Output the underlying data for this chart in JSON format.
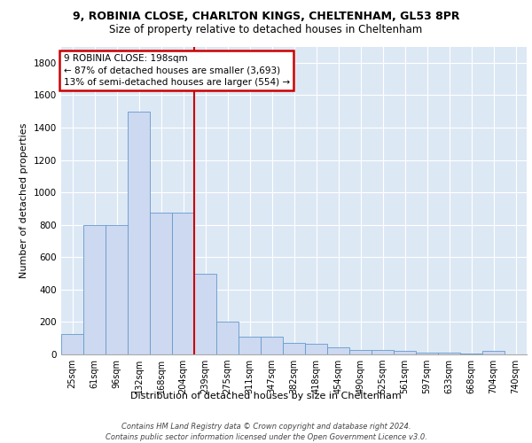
{
  "title_line1": "9, ROBINIA CLOSE, CHARLTON KINGS, CHELTENHAM, GL53 8PR",
  "title_line2": "Size of property relative to detached houses in Cheltenham",
  "xlabel": "Distribution of detached houses by size in Cheltenham",
  "ylabel": "Number of detached properties",
  "categories": [
    "25sqm",
    "61sqm",
    "96sqm",
    "132sqm",
    "168sqm",
    "204sqm",
    "239sqm",
    "275sqm",
    "311sqm",
    "347sqm",
    "382sqm",
    "418sqm",
    "454sqm",
    "490sqm",
    "525sqm",
    "561sqm",
    "597sqm",
    "633sqm",
    "668sqm",
    "704sqm",
    "740sqm"
  ],
  "values": [
    125,
    800,
    800,
    1500,
    875,
    875,
    500,
    200,
    110,
    110,
    70,
    65,
    45,
    30,
    25,
    20,
    10,
    10,
    8,
    20,
    0
  ],
  "bar_color": "#ccd9f0",
  "bar_edge_color": "#6699cc",
  "vline_color": "#cc0000",
  "vline_pos": 5.5,
  "annotation_text": "9 ROBINIA CLOSE: 198sqm\n← 87% of detached houses are smaller (3,693)\n13% of semi-detached houses are larger (554) →",
  "annotation_box_color": "white",
  "annotation_box_edge": "#cc0000",
  "bg_color": "#dde8f5",
  "grid_color": "white",
  "footnote_line1": "Contains HM Land Registry data © Crown copyright and database right 2024.",
  "footnote_line2": "Contains public sector information licensed under the Open Government Licence v3.0.",
  "ylim": [
    0,
    1900
  ],
  "yticks": [
    0,
    200,
    400,
    600,
    800,
    1000,
    1200,
    1400,
    1600,
    1800
  ]
}
